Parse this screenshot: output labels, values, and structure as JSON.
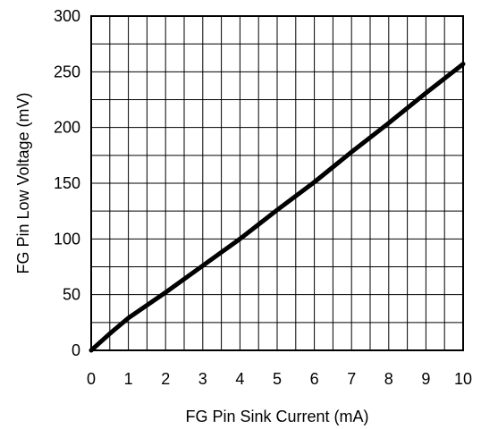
{
  "chart_data": {
    "type": "line",
    "title": "",
    "xlabel": "FG Pin Sink Current (mA)",
    "ylabel": "FG Pin Low Voltage (mV)",
    "xlim": [
      0,
      10
    ],
    "ylim": [
      0,
      300
    ],
    "x_ticks": [
      "0",
      "1",
      "2",
      "3",
      "4",
      "5",
      "6",
      "7",
      "8",
      "9",
      "10"
    ],
    "y_ticks": [
      "0",
      "50",
      "100",
      "150",
      "200",
      "250",
      "300"
    ],
    "grid": true,
    "legend": "none",
    "series": [
      {
        "x": [
          0,
          0.5,
          1,
          2,
          3,
          4,
          4.5,
          5,
          6,
          7,
          8,
          9,
          10
        ],
        "y": [
          0,
          15,
          29,
          52,
          76,
          100,
          113,
          126,
          151,
          178,
          204,
          231,
          257
        ]
      }
    ]
  }
}
